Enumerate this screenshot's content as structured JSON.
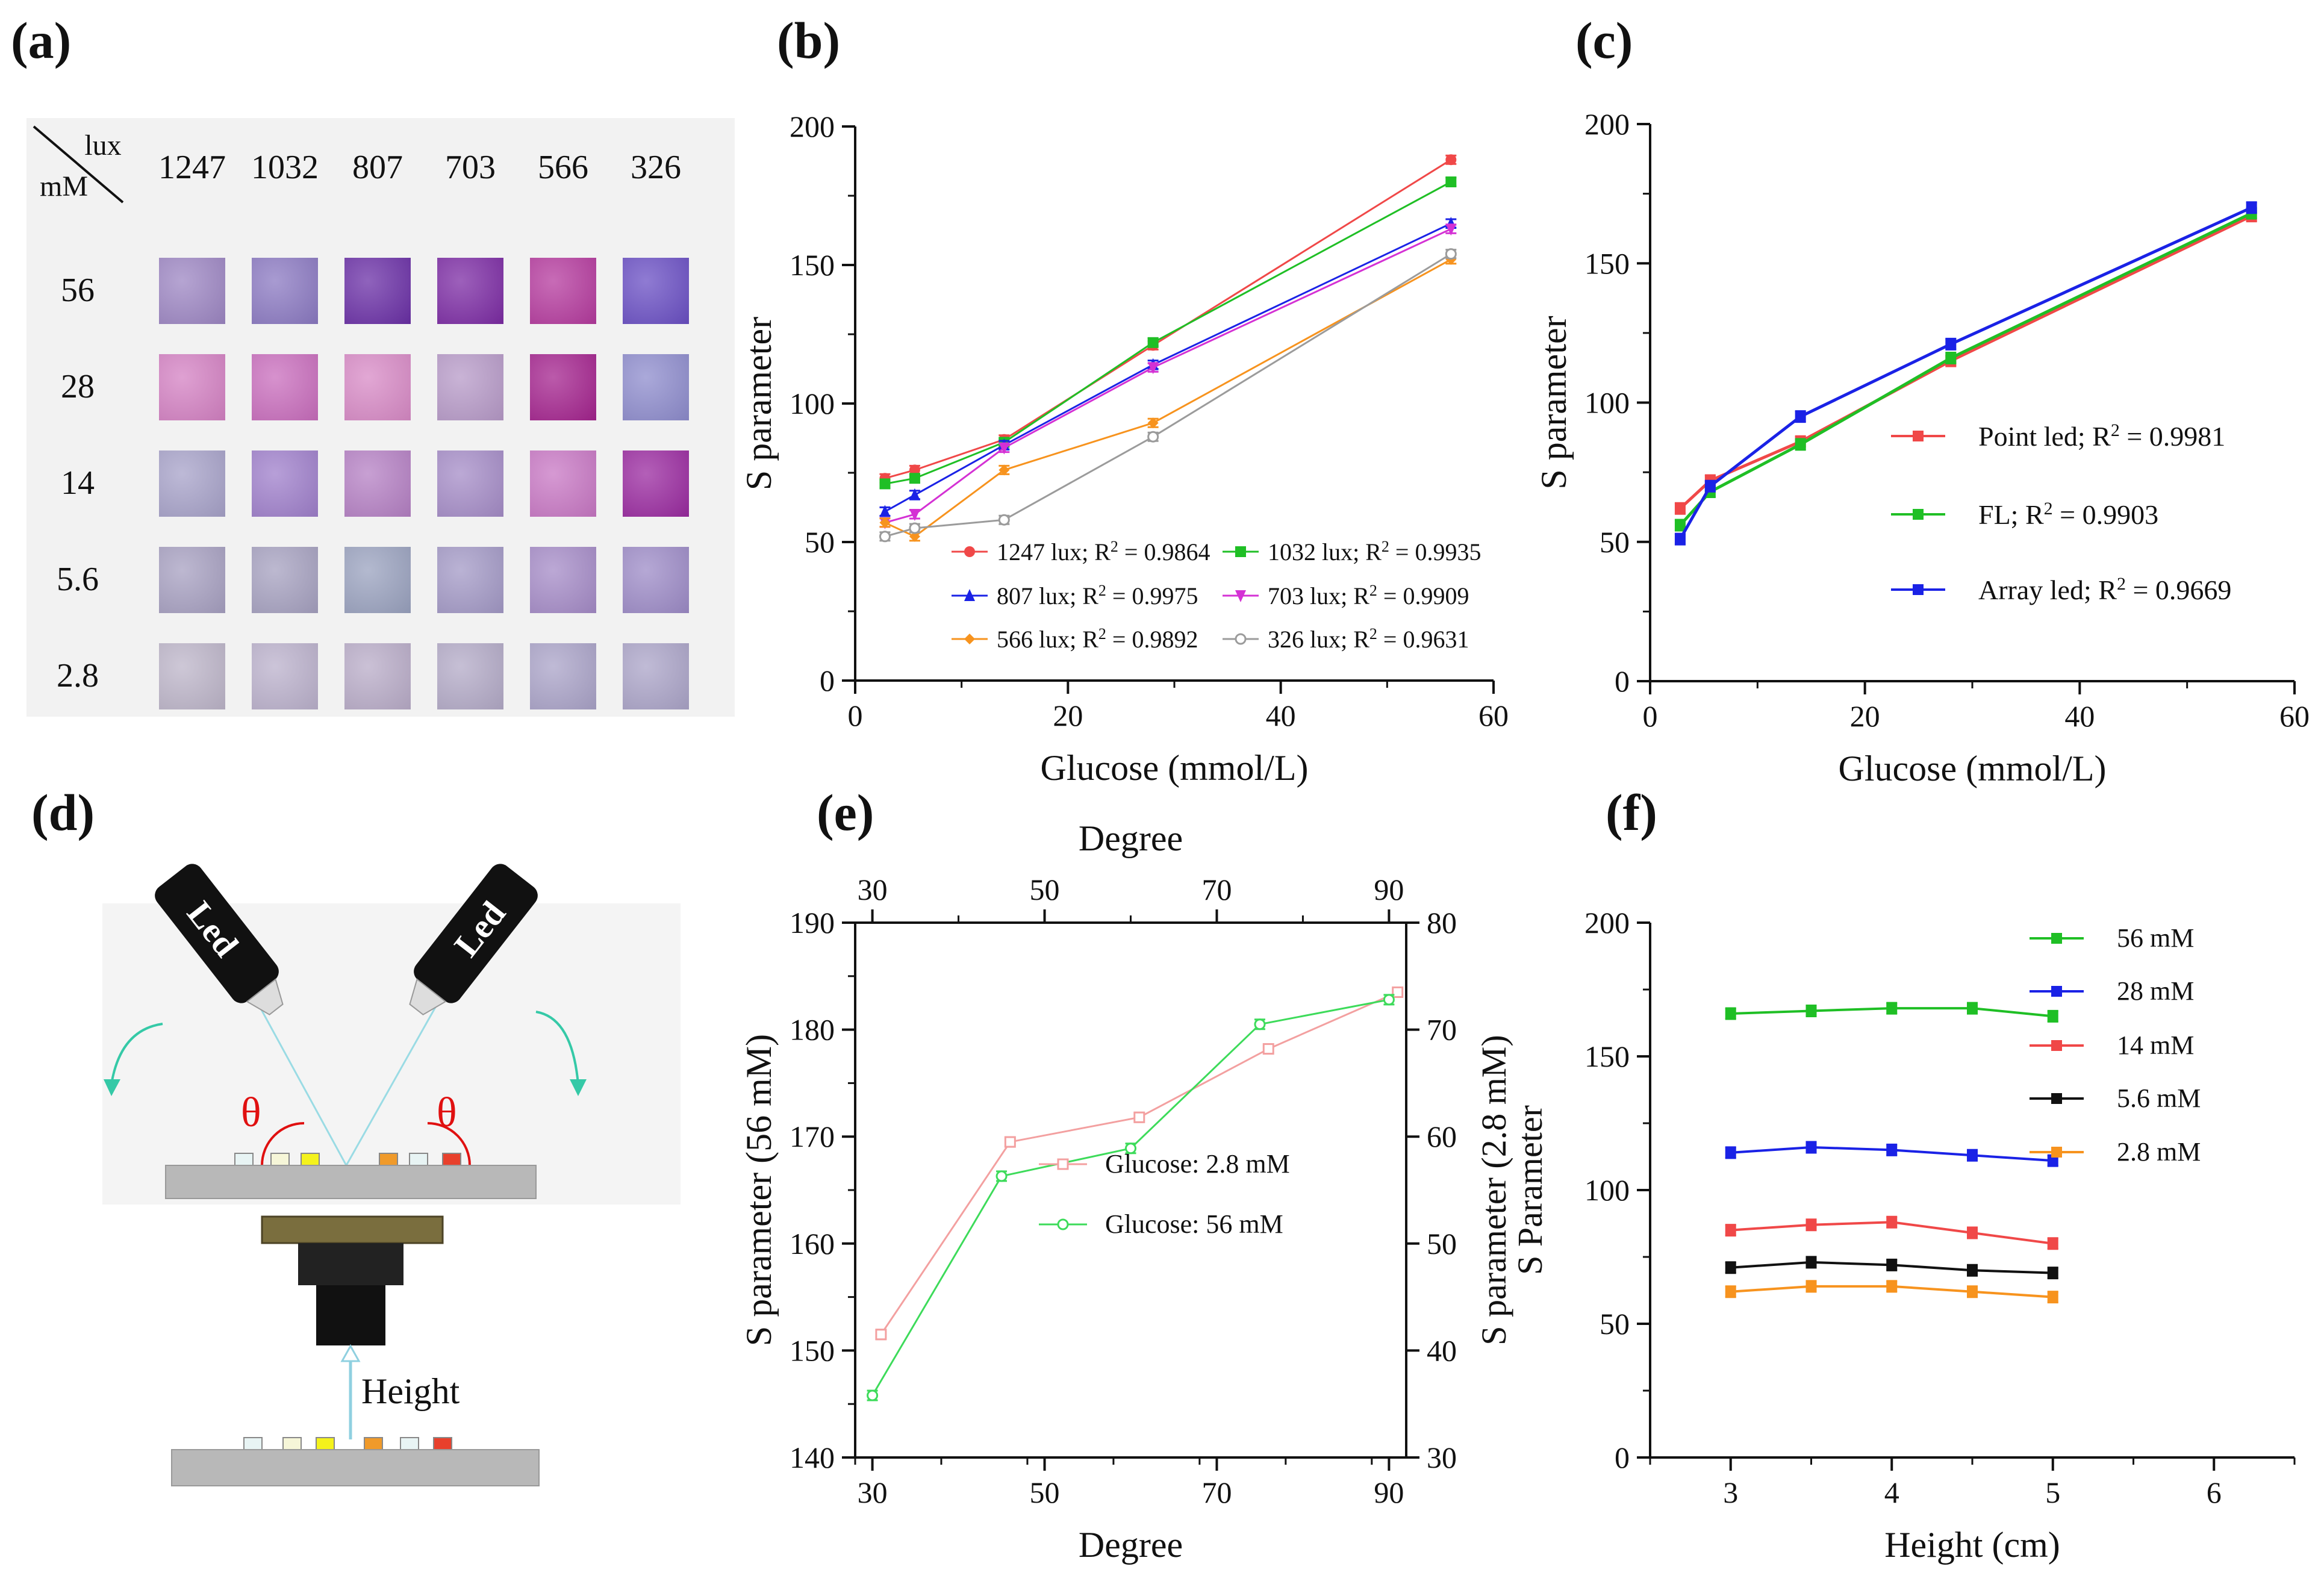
{
  "panels": {
    "a": "(a)",
    "b": "(b)",
    "c": "(c)",
    "d": "(d)",
    "e": "(e)",
    "f": "(f)"
  },
  "colors": {
    "red": "#f04848",
    "green": "#1fbf25",
    "blue": "#1a22e6",
    "magenta": "#d431d4",
    "orange": "#f7931e",
    "gray": "#9b9b9b",
    "pink": "#f3a0a0",
    "lightgreen": "#3ddb5a",
    "black": "#111111",
    "theta": "#e01010",
    "arrow": "#35c9a7"
  },
  "table_a": {
    "corner_top": "lux",
    "corner_bottom": "mM",
    "columns": [
      "1247",
      "1032",
      "807",
      "703",
      "566",
      "326"
    ],
    "rows": [
      "56",
      "28",
      "14",
      "5.6",
      "2.8"
    ],
    "tile_colors": [
      [
        "#9d86c3",
        "#8b79c2",
        "#6a2fa6",
        "#7c2ba4",
        "#b53a9e",
        "#6a4fc4"
      ],
      [
        "#d481c3",
        "#c96dbd",
        "#d88ac6",
        "#b79ac8",
        "#a4238e",
        "#8e8ccd"
      ],
      [
        "#a7a2c9",
        "#9f7fcb",
        "#b580c4",
        "#a58cc7",
        "#c877c4",
        "#9a2aa0"
      ],
      [
        "#a7a0c1",
        "#a6a1c0",
        "#9aa2bf",
        "#a399c6",
        "#a58bc7",
        "#9d8bc7"
      ],
      [
        "#bdb5c9",
        "#bbb1cc",
        "#b9acc8",
        "#b3aac7",
        "#aaa3c8",
        "#aba4c8"
      ]
    ]
  },
  "diagram_d": {
    "led_left": "Led",
    "led_right": "Led",
    "theta_left": "θ",
    "theta_right": "θ",
    "height_label": "Height"
  },
  "chart_data": [
    {
      "panel": "b",
      "type": "line",
      "xlabel": "Glucose (mmol/L)",
      "ylabel": "S parameter",
      "xlim": [
        0,
        60
      ],
      "ylim": [
        0,
        200
      ],
      "xticks": [
        "0",
        "20",
        "40",
        "60"
      ],
      "yticks": [
        "0",
        "50",
        "100",
        "150",
        "200"
      ],
      "x": [
        2.8,
        5.6,
        14,
        28,
        56
      ],
      "legend_placement": "bottom",
      "series": [
        {
          "name": "1247 lux; R",
          "r2": " = 0.9864",
          "color": "#f04848",
          "marker": "circle",
          "values": [
            73,
            76,
            87,
            121,
            188
          ]
        },
        {
          "name": "1032 lux; R",
          "r2": " = 0.9935",
          "color": "#1fbf25",
          "marker": "square",
          "values": [
            71,
            73,
            86,
            122,
            180
          ]
        },
        {
          "name": "807 lux; R",
          "r2": " = 0.9975",
          "color": "#1a22e6",
          "marker": "triangle",
          "values": [
            61,
            67,
            85,
            114,
            165
          ]
        },
        {
          "name": "703 lux; R",
          "r2": " = 0.9909",
          "color": "#d431d4",
          "marker": "triangle-down",
          "values": [
            57,
            60,
            84,
            113,
            163
          ]
        },
        {
          "name": "566 lux; R",
          "r2": " = 0.9892",
          "color": "#f7931e",
          "marker": "diamond",
          "values": [
            57,
            52,
            76,
            93,
            152
          ]
        },
        {
          "name": "326 lux; R",
          "r2": " = 0.9631",
          "color": "#9b9b9b",
          "marker": "open-circle",
          "values": [
            52,
            55,
            58,
            88,
            154
          ]
        }
      ]
    },
    {
      "panel": "c",
      "type": "line",
      "xlabel": "Glucose (mmol/L)",
      "ylabel": "S parameter",
      "xlim": [
        0,
        60
      ],
      "ylim": [
        0,
        200
      ],
      "xticks": [
        "0",
        "20",
        "40",
        "60"
      ],
      "yticks": [
        "0",
        "50",
        "100",
        "150",
        "200"
      ],
      "x": [
        2.8,
        5.6,
        14,
        28,
        56
      ],
      "legend_placement": "center-right",
      "series": [
        {
          "name": "Point led; R",
          "r2": " = 0.9981",
          "color": "#f04848",
          "values": [
            62,
            72,
            86,
            115,
            167
          ]
        },
        {
          "name": "FL; R",
          "r2": " = 0.9903",
          "color": "#1fbf25",
          "values": [
            56,
            68,
            85,
            116,
            168
          ]
        },
        {
          "name": "Array led; R",
          "r2": " = 0.9669",
          "color": "#1a22e6",
          "values": [
            51,
            70,
            95,
            121,
            170
          ]
        }
      ]
    },
    {
      "panel": "e",
      "type": "line",
      "xlabel": "Degree",
      "top_xlabel": "Degree",
      "ylabel": "S parameter (56 mM)",
      "ylabel_right_1": "S parameter (2.8 mM)",
      "ylabel_right_2": "S Parameter",
      "xlim": [
        28,
        92
      ],
      "ylim_left": [
        140,
        190
      ],
      "ylim_right": [
        30,
        80
      ],
      "xticks": [
        "30",
        "50",
        "70",
        "90"
      ],
      "yticks_left": [
        "140",
        "150",
        "160",
        "170",
        "180",
        "190"
      ],
      "yticks_right": [
        "30",
        "40",
        "50",
        "60",
        "70",
        "80"
      ],
      "legend_placement": "center-right",
      "series": [
        {
          "name": "Glucose: 2.8 mM",
          "axis": "right",
          "color": "#f3a0a0",
          "x": [
            31,
            46,
            61,
            76,
            91
          ],
          "values": [
            41.5,
            59.5,
            61.8,
            68.2,
            73.5
          ]
        },
        {
          "name": "Glucose: 56 mM",
          "axis": "left",
          "color": "#3ddb5a",
          "x": [
            30,
            45,
            60,
            75,
            90
          ],
          "values": [
            145.8,
            166.3,
            168.9,
            180.5,
            182.8
          ]
        }
      ]
    },
    {
      "panel": "f",
      "type": "line",
      "xlabel": "Height (cm)",
      "ylabel": "",
      "xlim": [
        2.5,
        6.5
      ],
      "ylim": [
        0,
        200
      ],
      "xticks": [
        "3",
        "4",
        "5",
        "6"
      ],
      "yticks": [
        "0",
        "50",
        "100",
        "150",
        "200"
      ],
      "x": [
        3,
        3.5,
        4,
        4.5,
        5
      ],
      "legend_placement": "top-right",
      "series": [
        {
          "name": "56 mM",
          "color": "#1fbf25",
          "values": [
            166,
            167,
            168,
            168,
            165
          ]
        },
        {
          "name": "28 mM",
          "color": "#1a22e6",
          "values": [
            114,
            116,
            115,
            113,
            111
          ]
        },
        {
          "name": "14 mM",
          "color": "#f04848",
          "values": [
            85,
            87,
            88,
            84,
            80
          ]
        },
        {
          "name": "5.6 mM",
          "color": "#111111",
          "values": [
            71,
            73,
            72,
            70,
            69
          ]
        },
        {
          "name": "2.8 mM",
          "color": "#f7931e",
          "values": [
            62,
            64,
            64,
            62,
            60
          ]
        }
      ]
    }
  ]
}
